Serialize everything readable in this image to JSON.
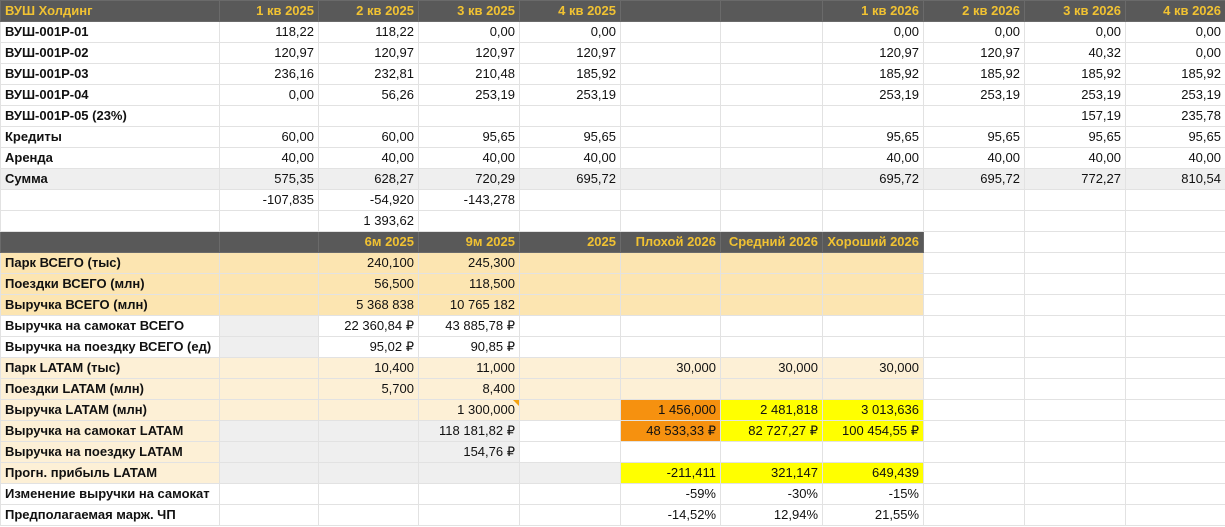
{
  "sheet": {
    "rows": [
      [
        "ВУШ Холдинг",
        "1 кв 2025",
        "2 кв 2025",
        "3 кв 2025",
        "4 кв 2025",
        null,
        null,
        "1 кв 2026",
        "2 кв 2026",
        "3 кв 2026",
        "4 кв 2026"
      ],
      [
        "ВУШ-001Р-01",
        "118,22",
        "118,22",
        "0,00",
        "0,00",
        null,
        null,
        "0,00",
        "0,00",
        "0,00",
        "0,00"
      ],
      [
        "ВУШ-001Р-02",
        "120,97",
        "120,97",
        "120,97",
        "120,97",
        null,
        null,
        "120,97",
        "120,97",
        "40,32",
        "0,00"
      ],
      [
        "ВУШ-001Р-03",
        "236,16",
        "232,81",
        "210,48",
        "185,92",
        null,
        null,
        "185,92",
        "185,92",
        "185,92",
        "185,92"
      ],
      [
        "ВУШ-001Р-04",
        "0,00",
        "56,26",
        "253,19",
        "253,19",
        null,
        null,
        "253,19",
        "253,19",
        "253,19",
        "253,19"
      ],
      [
        "ВУШ-001Р-05 (23%)",
        null,
        null,
        null,
        null,
        null,
        null,
        null,
        null,
        "157,19",
        "235,78"
      ],
      [
        "Кредиты",
        "60,00",
        "60,00",
        "95,65",
        "95,65",
        null,
        null,
        "95,65",
        "95,65",
        "95,65",
        "95,65"
      ],
      [
        "Аренда",
        "40,00",
        "40,00",
        "40,00",
        "40,00",
        null,
        null,
        "40,00",
        "40,00",
        "40,00",
        "40,00"
      ],
      [
        "Сумма",
        "575,35",
        "628,27",
        "720,29",
        "695,72",
        null,
        null,
        "695,72",
        "695,72",
        "772,27",
        "810,54"
      ],
      [
        null,
        "-107,835",
        "-54,920",
        "-143,278",
        null,
        null,
        null,
        null,
        null,
        null,
        null
      ],
      [
        null,
        null,
        "1 393,62",
        null,
        null,
        null,
        null,
        null,
        null,
        null,
        null
      ],
      [
        null,
        null,
        "6м 2025",
        "9м 2025",
        "2025",
        "Плохой 2026",
        "Средний 2026",
        "Хороший 2026",
        null,
        null,
        null
      ],
      [
        "Парк ВСЕГО (тыс)",
        null,
        "240,100",
        "245,300",
        null,
        null,
        null,
        null,
        null,
        null,
        null
      ],
      [
        "Поездки ВСЕГО (млн)",
        null,
        "56,500",
        "118,500",
        null,
        null,
        null,
        null,
        null,
        null,
        null
      ],
      [
        "Выручка ВСЕГО (млн)",
        null,
        "5 368 838",
        "10 765 182",
        null,
        null,
        null,
        null,
        null,
        null,
        null
      ],
      [
        "Выручка на самокат ВСЕГО",
        null,
        "22 360,84 ₽",
        "43 885,78 ₽",
        null,
        null,
        null,
        null,
        null,
        null,
        null
      ],
      [
        "Выручка на поездку ВСЕГО (ед)",
        null,
        "95,02 ₽",
        "90,85 ₽",
        null,
        null,
        null,
        null,
        null,
        null,
        null
      ],
      [
        "Парк LATAM (тыс)",
        null,
        "10,400",
        "11,000",
        null,
        "30,000",
        "30,000",
        "30,000",
        null,
        null,
        null
      ],
      [
        "Поездки LATAM (млн)",
        null,
        "5,700",
        "8,400",
        null,
        null,
        null,
        null,
        null,
        null,
        null
      ],
      [
        "Выручка LATAM (млн)",
        null,
        null,
        "1 300,000",
        null,
        "1 456,000",
        "2 481,818",
        "3 013,636",
        null,
        null,
        null
      ],
      [
        "Выручка на самокат LATAM",
        null,
        null,
        "118 181,82 ₽",
        null,
        "48 533,33 ₽",
        "82 727,27 ₽",
        "100 454,55 ₽",
        null,
        null,
        null
      ],
      [
        "Выручка на поездку LATAM",
        null,
        null,
        "154,76 ₽",
        null,
        null,
        null,
        null,
        null,
        null,
        null
      ],
      [
        "Прогн. прибыль LATAM",
        null,
        null,
        null,
        null,
        "-211,411",
        "321,147",
        "649,439",
        null,
        null,
        null
      ],
      [
        "Изменение выручки на самокат",
        null,
        null,
        null,
        null,
        "-59%",
        "-30%",
        "-15%",
        null,
        null,
        null
      ],
      [
        "Предполагаемая марж. ЧП",
        null,
        null,
        null,
        null,
        "-14,52%",
        "12,94%",
        "21,55%",
        null,
        null,
        null
      ]
    ]
  }
}
